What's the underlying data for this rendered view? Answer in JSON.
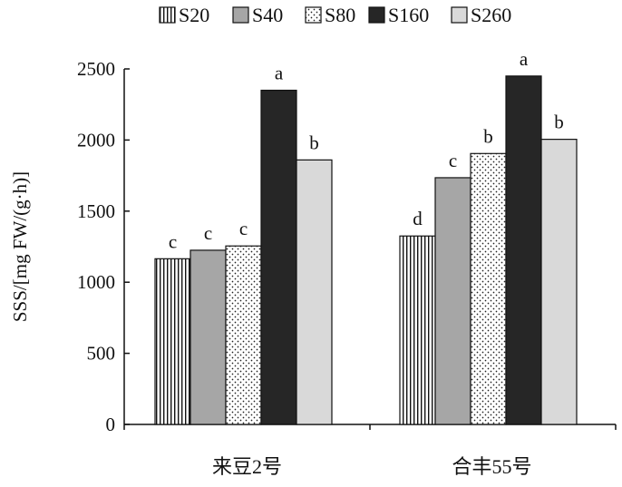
{
  "chart_data": {
    "type": "bar",
    "title": "",
    "xlabel": "",
    "ylabel": "SSS/[mg FW/(g·h)]",
    "ylim": [
      0,
      2500
    ],
    "yticks": [
      0,
      500,
      1000,
      1500,
      2000,
      2500
    ],
    "grid": false,
    "legend_position": "top",
    "categories": [
      "来豆2号",
      "合丰55号"
    ],
    "series": [
      {
        "name": "S20",
        "pattern": "vertical-stripes",
        "values": [
          1165,
          1325
        ],
        "sig": [
          "c",
          "d"
        ]
      },
      {
        "name": "S40",
        "pattern": "gray",
        "values": [
          1225,
          1735
        ],
        "sig": [
          "c",
          "c"
        ]
      },
      {
        "name": "S80",
        "pattern": "dots",
        "values": [
          1255,
          1905
        ],
        "sig": [
          "c",
          "b"
        ]
      },
      {
        "name": "S160",
        "pattern": "black",
        "values": [
          2350,
          2450
        ],
        "sig": [
          "a",
          "a"
        ]
      },
      {
        "name": "S260",
        "pattern": "light-gray",
        "values": [
          1860,
          2005
        ],
        "sig": [
          "b",
          "b"
        ]
      }
    ],
    "colors": {
      "gray": "#a6a6a6",
      "black": "#262626",
      "light-gray": "#d9d9d9",
      "stroke": "#111111"
    }
  }
}
